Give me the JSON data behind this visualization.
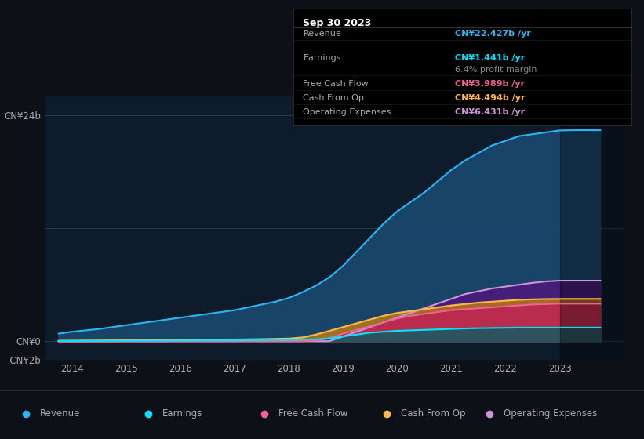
{
  "bg_color": "#0d1117",
  "plot_bg_color": "#0d1b2a",
  "years": [
    2013.75,
    2014,
    2014.25,
    2014.5,
    2014.75,
    2015,
    2015.25,
    2015.5,
    2015.75,
    2016,
    2016.25,
    2016.5,
    2016.75,
    2017,
    2017.25,
    2017.5,
    2017.75,
    2018,
    2018.25,
    2018.5,
    2018.75,
    2019,
    2019.25,
    2019.5,
    2019.75,
    2020,
    2020.25,
    2020.5,
    2020.75,
    2021,
    2021.25,
    2021.5,
    2021.75,
    2022,
    2022.25,
    2022.5,
    2022.75,
    2023,
    2023.25,
    2023.5,
    2023.75
  ],
  "revenue": [
    0.8,
    1.0,
    1.15,
    1.3,
    1.5,
    1.7,
    1.9,
    2.1,
    2.3,
    2.5,
    2.7,
    2.9,
    3.1,
    3.3,
    3.6,
    3.9,
    4.2,
    4.6,
    5.2,
    5.9,
    6.8,
    8.0,
    9.5,
    11.0,
    12.5,
    13.8,
    14.8,
    15.8,
    17.0,
    18.2,
    19.2,
    20.0,
    20.8,
    21.3,
    21.8,
    22.0,
    22.2,
    22.4,
    22.427,
    22.427,
    22.427
  ],
  "earnings": [
    0.02,
    0.02,
    0.03,
    0.03,
    0.04,
    0.04,
    0.05,
    0.05,
    0.06,
    0.06,
    0.07,
    0.07,
    0.08,
    0.09,
    0.1,
    0.11,
    0.12,
    0.13,
    0.15,
    0.2,
    0.3,
    0.5,
    0.7,
    0.9,
    1.0,
    1.1,
    1.15,
    1.2,
    1.25,
    1.3,
    1.35,
    1.38,
    1.4,
    1.42,
    1.44,
    1.441,
    1.441,
    1.441,
    1.441,
    1.441,
    1.441
  ],
  "free_cash_flow": [
    -0.05,
    -0.05,
    -0.05,
    -0.04,
    -0.04,
    -0.03,
    -0.03,
    -0.03,
    -0.03,
    -0.02,
    -0.02,
    -0.02,
    -0.02,
    -0.01,
    -0.01,
    -0.01,
    -0.01,
    -0.01,
    0.0,
    0.1,
    0.3,
    0.8,
    1.2,
    1.6,
    2.0,
    2.4,
    2.7,
    2.9,
    3.1,
    3.3,
    3.4,
    3.5,
    3.6,
    3.7,
    3.8,
    3.9,
    3.95,
    3.989,
    3.989,
    3.989,
    3.989
  ],
  "cash_from_op": [
    0.05,
    0.06,
    0.07,
    0.08,
    0.09,
    0.1,
    0.11,
    0.12,
    0.13,
    0.14,
    0.15,
    0.16,
    0.17,
    0.18,
    0.2,
    0.22,
    0.25,
    0.28,
    0.4,
    0.7,
    1.1,
    1.5,
    1.9,
    2.3,
    2.7,
    3.0,
    3.2,
    3.4,
    3.6,
    3.8,
    3.95,
    4.1,
    4.2,
    4.3,
    4.4,
    4.45,
    4.48,
    4.494,
    4.494,
    4.494,
    4.494
  ],
  "op_expenses": [
    0.0,
    0.0,
    0.0,
    0.0,
    0.0,
    0.0,
    0.0,
    0.0,
    0.0,
    0.0,
    0.0,
    0.0,
    0.0,
    0.0,
    0.0,
    0.0,
    0.0,
    0.0,
    0.0,
    0.0,
    0.0,
    0.5,
    1.0,
    1.5,
    2.0,
    2.5,
    3.0,
    3.5,
    4.0,
    4.5,
    5.0,
    5.3,
    5.6,
    5.8,
    6.0,
    6.2,
    6.35,
    6.431,
    6.431,
    6.431,
    6.431
  ],
  "revenue_color": "#29b6f6",
  "earnings_color": "#00e5ff",
  "free_cash_flow_color": "#f06292",
  "cash_from_op_color": "#ffb74d",
  "op_expenses_color": "#ce93d8",
  "revenue_fill": "#1a4a6e",
  "op_expenses_fill": "#4a1a7a",
  "grid_color": "#1e3a5f",
  "text_color": "#aaaaaa",
  "title_color": "#ffffff",
  "tooltip_bg": "#000000",
  "ylim": [
    -2,
    26
  ],
  "yticks": [
    -2,
    0,
    24
  ],
  "ytick_labels": [
    "-CN¥2b",
    "CN¥0",
    "CN¥24b"
  ],
  "xticks": [
    2014,
    2015,
    2016,
    2017,
    2018,
    2019,
    2020,
    2021,
    2022,
    2023
  ],
  "tooltip_title": "Sep 30 2023",
  "tooltip_rows": [
    {
      "label": "Revenue",
      "value": "CN¥22.427b /yr",
      "color": "#29b6f6"
    },
    {
      "label": "Earnings",
      "value": "CN¥1.441b /yr",
      "color": "#00e5ff"
    },
    {
      "label": "",
      "value": "6.4% profit margin",
      "color": "#888888"
    },
    {
      "label": "Free Cash Flow",
      "value": "CN¥3.989b /yr",
      "color": "#f06292"
    },
    {
      "label": "Cash From Op",
      "value": "CN¥4.494b /yr",
      "color": "#ffb74d"
    },
    {
      "label": "Operating Expenses",
      "value": "CN¥6.431b /yr",
      "color": "#ce93d8"
    }
  ],
  "legend_items": [
    {
      "label": "Revenue",
      "color": "#29b6f6"
    },
    {
      "label": "Earnings",
      "color": "#00e5ff"
    },
    {
      "label": "Free Cash Flow",
      "color": "#f06292"
    },
    {
      "label": "Cash From Op",
      "color": "#ffb74d"
    },
    {
      "label": "Operating Expenses",
      "color": "#ce93d8"
    }
  ]
}
